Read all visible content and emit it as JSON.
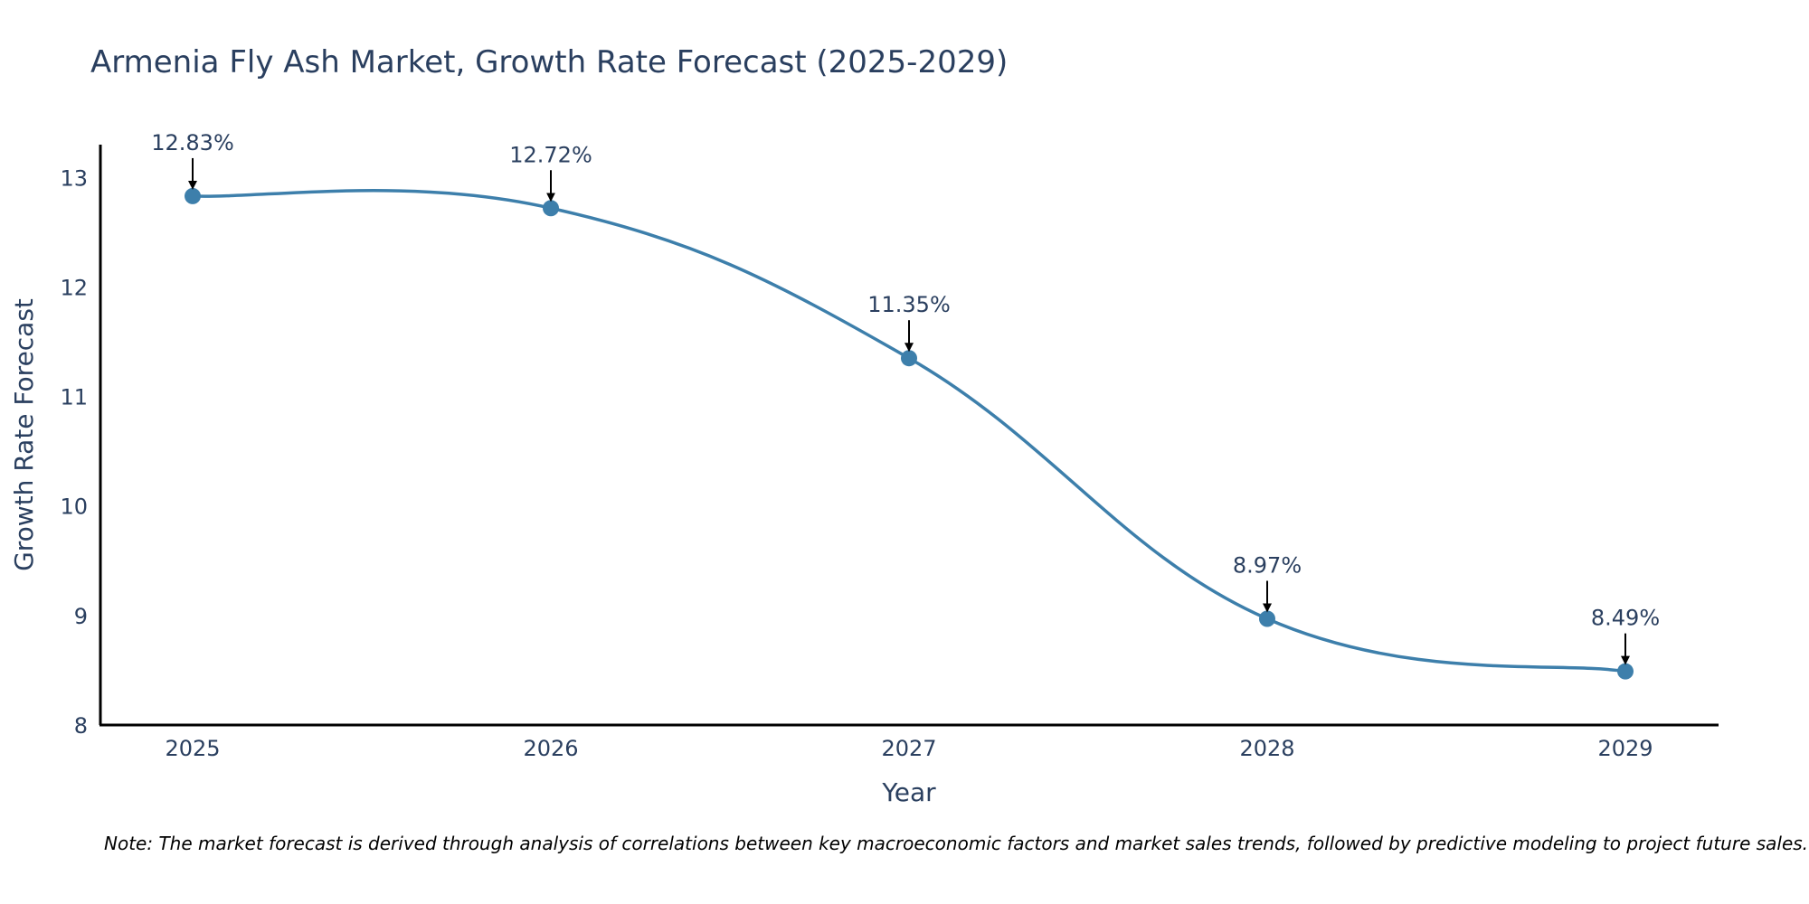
{
  "chart_data": {
    "type": "line",
    "title": "Armenia Fly Ash Market, Growth Rate Forecast (2025-2029)",
    "xlabel": "Year",
    "ylabel": "Growth Rate Forecast",
    "categories": [
      "2025",
      "2026",
      "2027",
      "2028",
      "2029"
    ],
    "values": [
      12.83,
      12.72,
      11.35,
      8.97,
      8.49
    ],
    "data_labels": [
      "12.83%",
      "12.72%",
      "11.35%",
      "8.97%",
      "8.49%"
    ],
    "ylim": [
      8,
      13.3
    ],
    "yticks": [
      8,
      9,
      10,
      11,
      12,
      13
    ],
    "ytick_labels": [
      "8",
      "9",
      "10",
      "11",
      "12",
      "13"
    ],
    "grid": false,
    "line_shape": "smooth",
    "colors": {
      "line": "#3d7fab",
      "marker": "#3d7fab",
      "annotation_arrow": "#000000",
      "axis": "#000000",
      "text": "#2a3f5f"
    }
  },
  "note": "Note: The market forecast is derived through analysis of correlations between key macroeconomic factors and market sales trends, followed by predictive modeling to project future sales."
}
